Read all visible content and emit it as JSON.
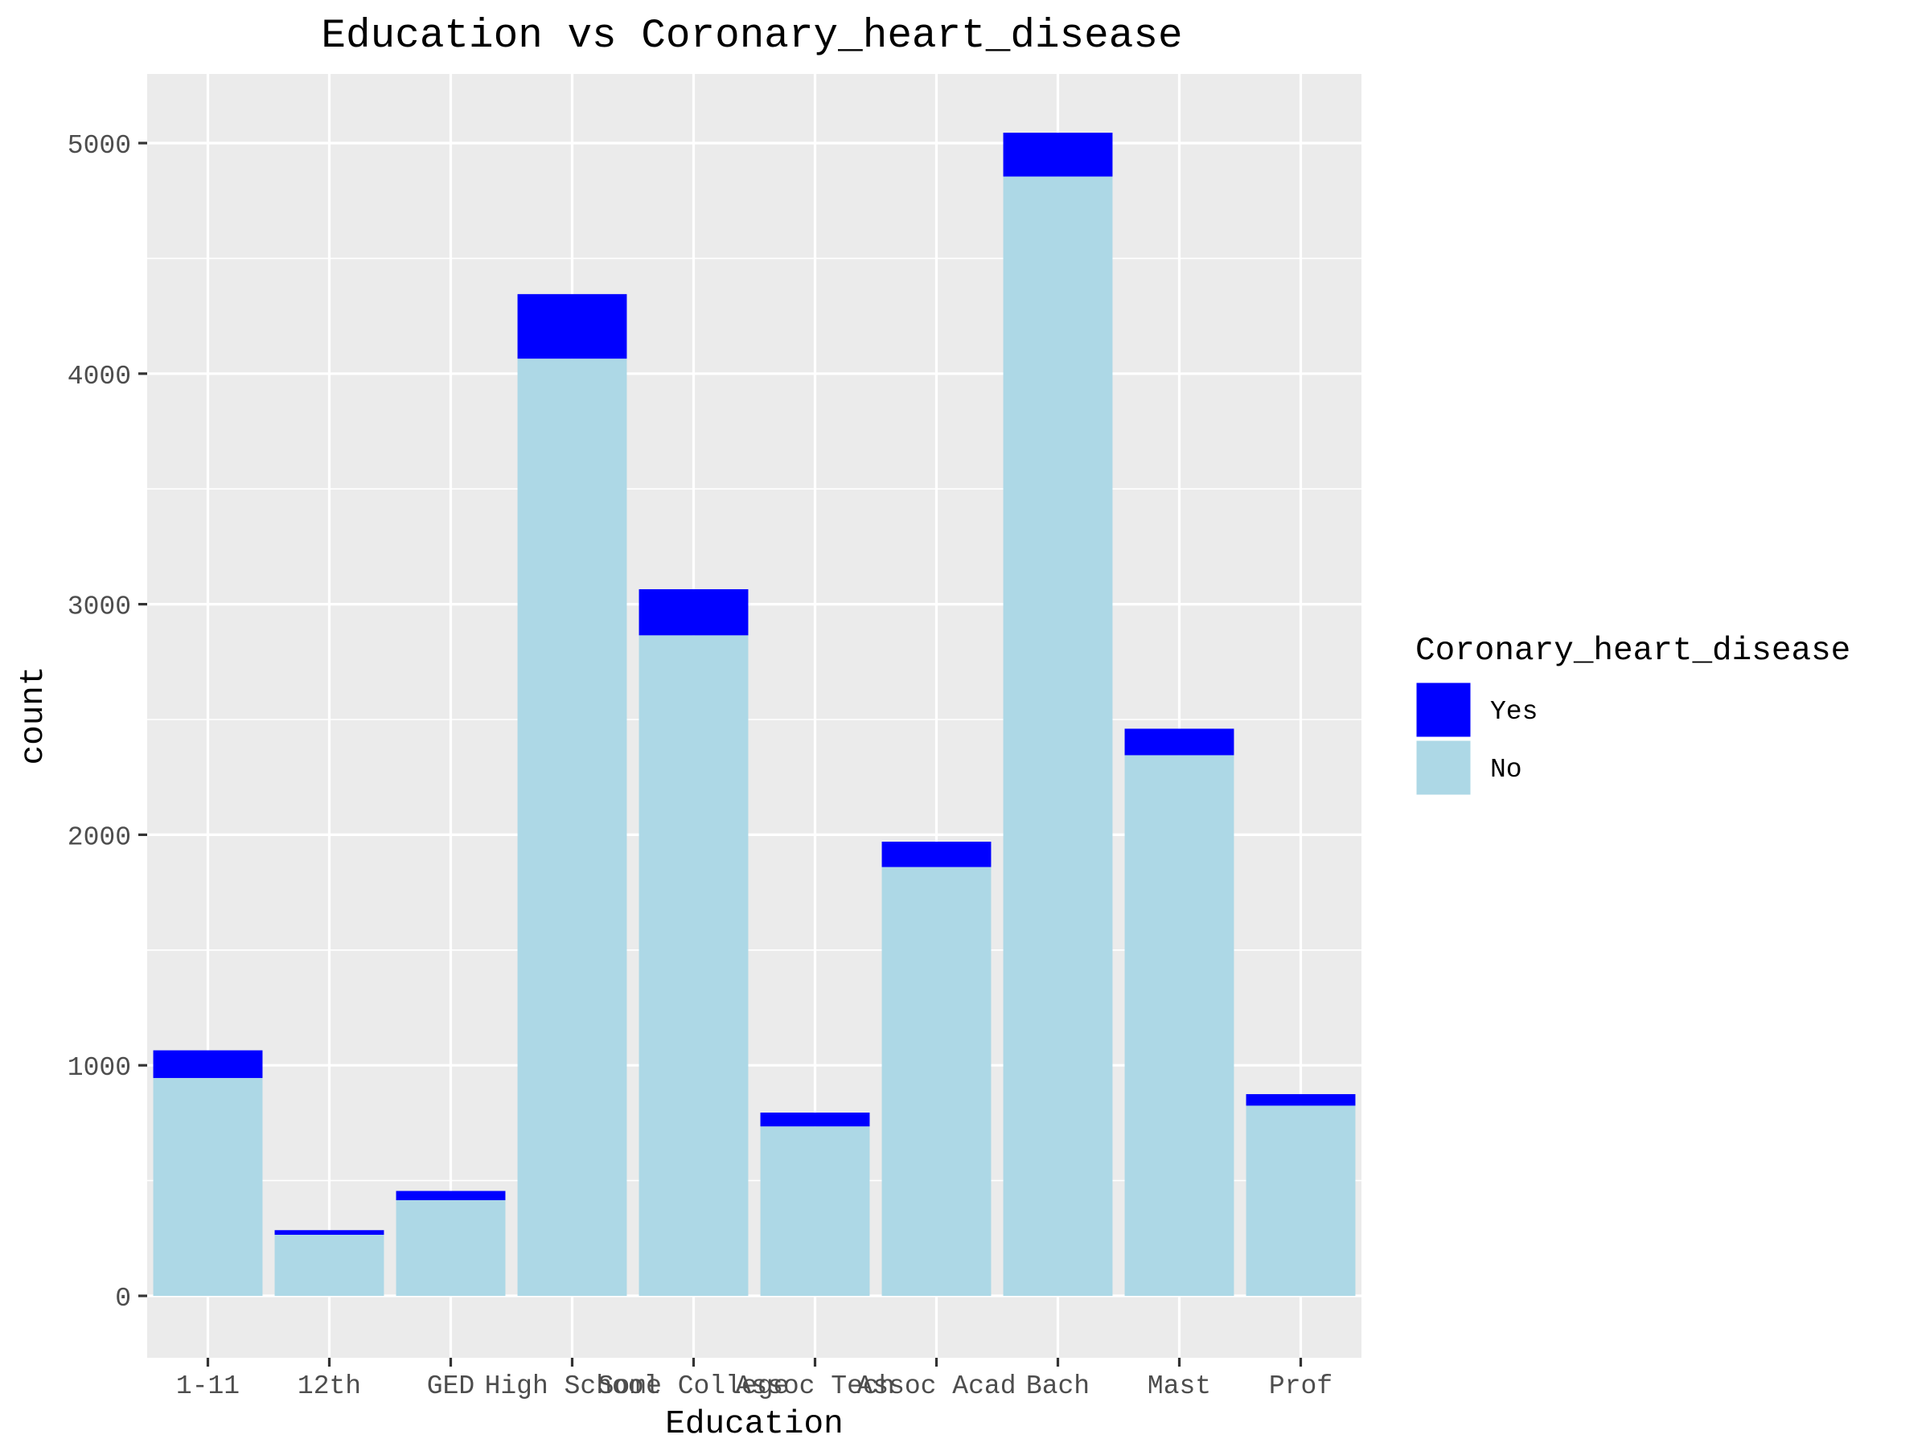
{
  "chart_data": {
    "type": "bar",
    "stacked": true,
    "title": "Education vs Coronary_heart_disease",
    "xlabel": "Education",
    "ylabel": "count",
    "categories": [
      "1-11",
      "12th",
      "GED",
      "High School",
      "Some College",
      "Assoc Tech",
      "Assoc Acad",
      "Bach",
      "Mast",
      "Prof"
    ],
    "series": [
      {
        "name": "No",
        "color": "#add8e6",
        "values": [
          945,
          265,
          415,
          4065,
          2865,
          735,
          1860,
          4855,
          2345,
          825
        ]
      },
      {
        "name": "Yes",
        "color": "#0000ff",
        "values": [
          120,
          20,
          40,
          280,
          200,
          60,
          110,
          190,
          115,
          50
        ]
      }
    ],
    "ylim": [
      0,
      5300
    ],
    "yticks": [
      0,
      1000,
      2000,
      3000,
      4000,
      5000
    ],
    "grid": true,
    "panel_background": "#ebebeb",
    "legend": {
      "title": "Coronary_heart_disease",
      "position": "right",
      "items": [
        {
          "label": "Yes",
          "color": "#0000ff"
        },
        {
          "label": "No",
          "color": "#add8e6"
        }
      ]
    }
  }
}
